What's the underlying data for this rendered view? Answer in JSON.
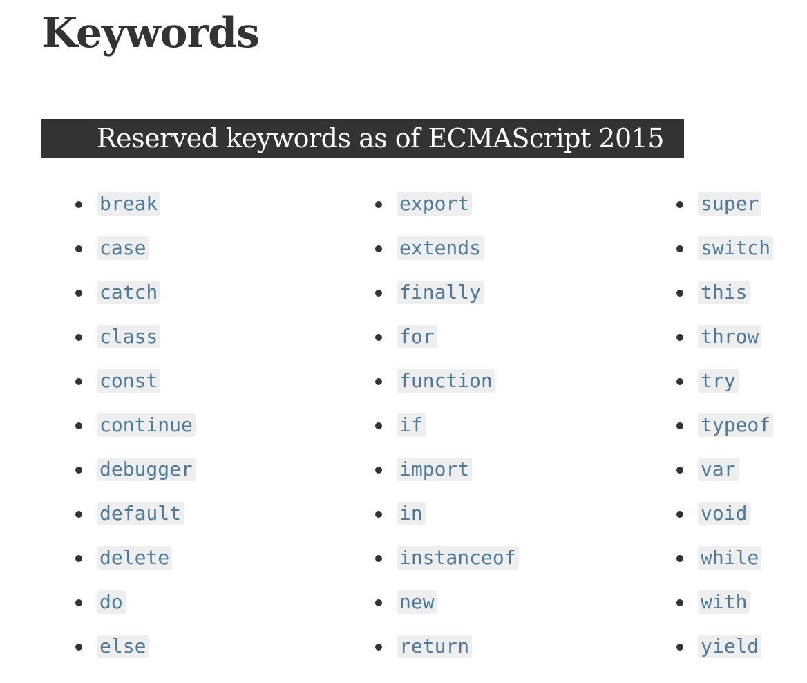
{
  "page": {
    "title": "Keywords"
  },
  "section": {
    "heading": "Reserved keywords as of ECMAScript 2015"
  },
  "keywords": {
    "column1": [
      "break",
      "case",
      "catch",
      "class",
      "const",
      "continue",
      "debugger",
      "default",
      "delete",
      "do",
      "else"
    ],
    "column2": [
      "export",
      "extends",
      "finally",
      "for",
      "function",
      "if",
      "import",
      "in",
      "instanceof",
      "new",
      "return"
    ],
    "column3": [
      "super",
      "switch",
      "this",
      "throw",
      "try",
      "typeof",
      "var",
      "void",
      "while",
      "with",
      "yield"
    ]
  },
  "colors": {
    "text": "#333333",
    "heading_background": "#333333",
    "heading_text": "#ffffff",
    "code_text": "#4d7a96",
    "code_background": "#eeeeee"
  }
}
